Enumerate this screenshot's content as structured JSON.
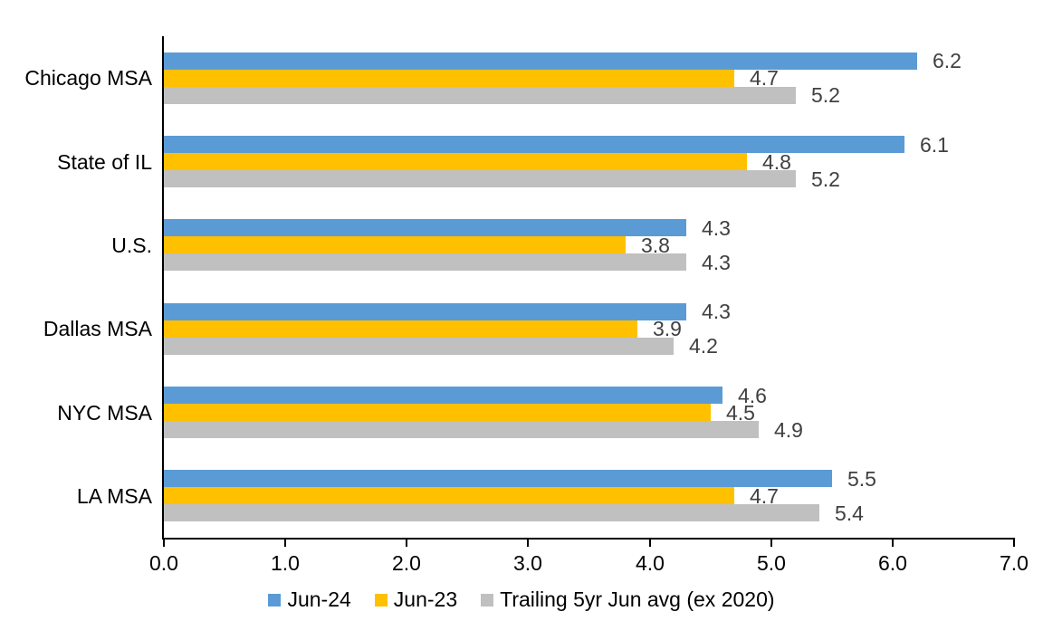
{
  "chart_data": {
    "type": "bar",
    "orientation": "horizontal",
    "title": "",
    "xlabel": "",
    "ylabel": "",
    "categories": [
      "Chicago MSA",
      "State of IL",
      "U.S.",
      "Dallas MSA",
      "NYC MSA",
      "LA MSA"
    ],
    "series": [
      {
        "name": "Jun-24",
        "color": "#5B9BD5",
        "values": [
          6.2,
          6.1,
          4.3,
          4.3,
          4.6,
          5.5
        ]
      },
      {
        "name": "Jun-23",
        "color": "#FFC000",
        "values": [
          4.7,
          4.8,
          3.8,
          3.9,
          4.5,
          4.7
        ]
      },
      {
        "name": "Trailing 5yr Jun avg (ex 2020)",
        "color": "#C0C0C0",
        "values": [
          5.2,
          5.2,
          4.3,
          4.2,
          4.9,
          5.4
        ]
      }
    ],
    "xlim": [
      0.0,
      7.0
    ],
    "x_ticks": [
      "0.0",
      "1.0",
      "2.0",
      "3.0",
      "4.0",
      "5.0",
      "6.0",
      "7.0"
    ],
    "grid": false,
    "legend_position": "bottom",
    "value_labels_shown": true,
    "value_label_color": "#404040",
    "axis_color": "#000000",
    "background_color": "#FFFFFF"
  }
}
